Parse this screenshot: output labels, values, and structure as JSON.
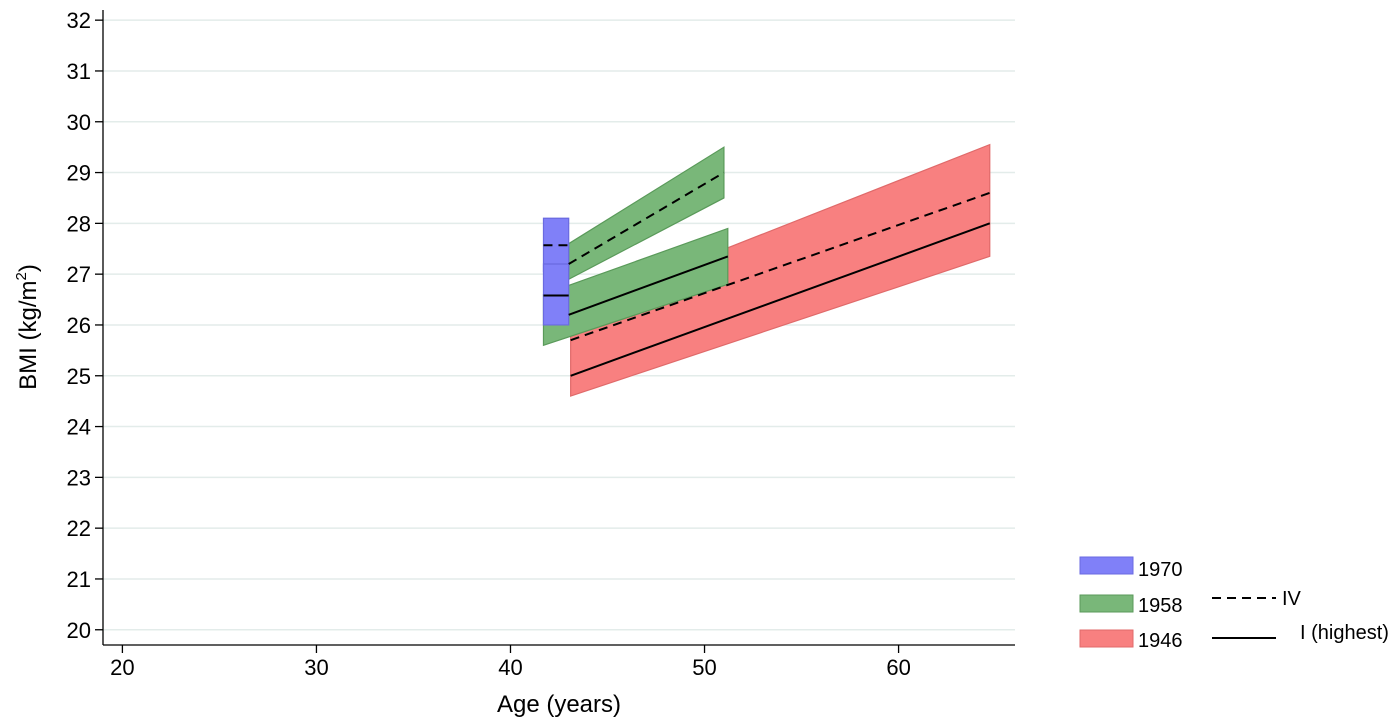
{
  "chart_data": {
    "type": "area",
    "title": "",
    "xlabel": "Age (years)",
    "ylabel": "BMI (kg/m",
    "ylabel_sup": "2",
    "ylabel_close": ")",
    "xlim": [
      19,
      66
    ],
    "ylim": [
      19.7,
      32.2
    ],
    "xticks": [
      20,
      30,
      40,
      50,
      60
    ],
    "yticks": [
      20,
      21,
      22,
      23,
      24,
      25,
      26,
      27,
      28,
      29,
      30,
      31,
      32
    ],
    "grid": true,
    "legend_position": "bottom-right",
    "cohorts": [
      {
        "name": "1970",
        "color": "#8080f8",
        "edge": "#6a6ae0",
        "bands": [
          {
            "x": [
              41.7,
              43.0
            ],
            "lower": [
              27.05,
              27.05
            ],
            "upper": [
              28.1,
              28.1
            ]
          },
          {
            "x": [
              41.7,
              43.0
            ],
            "lower": [
              26.0,
              26.0
            ],
            "upper": [
              27.2,
              27.2
            ]
          }
        ],
        "lines": [
          {
            "style": "dashed",
            "x": [
              41.7,
              43.0
            ],
            "y": [
              27.57,
              27.57
            ]
          },
          {
            "style": "solid",
            "x": [
              41.7,
              43.0
            ],
            "y": [
              26.58,
              26.58
            ]
          }
        ]
      },
      {
        "name": "1958",
        "color": "#79b779",
        "edge": "#5a9a5a",
        "bands": [
          {
            "x": [
              43.0,
              51.0
            ],
            "lower": [
              26.9,
              28.5
            ],
            "upper": [
              27.6,
              29.5
            ]
          },
          {
            "x": [
              41.7,
              51.2
            ],
            "lower": [
              25.6,
              26.8
            ],
            "upper": [
              26.6,
              27.9
            ]
          }
        ],
        "lines": [
          {
            "style": "dashed",
            "x": [
              43.0,
              51.0
            ],
            "y": [
              27.2,
              29.0
            ]
          },
          {
            "style": "solid",
            "x": [
              43.0,
              51.2
            ],
            "y": [
              26.2,
              27.35
            ]
          }
        ]
      },
      {
        "name": "1946",
        "color": "#f88080",
        "edge": "#e06a6a",
        "bands": [
          {
            "x": [
              43.1,
              64.7
            ],
            "lower": [
              24.6,
              27.35
            ],
            "upper": [
              26.3,
              29.55
            ]
          }
        ],
        "lines": [
          {
            "style": "dashed",
            "x": [
              43.1,
              64.7
            ],
            "y": [
              25.7,
              28.6
            ]
          },
          {
            "style": "solid",
            "x": [
              43.1,
              64.7
            ],
            "y": [
              25.0,
              28.0
            ]
          }
        ]
      }
    ],
    "legend": {
      "cohorts": [
        "1970",
        "1958",
        "1946"
      ],
      "lines": [
        {
          "label": "IV",
          "style": "dashed"
        },
        {
          "label": "I (highest)",
          "style": "solid"
        }
      ]
    }
  }
}
